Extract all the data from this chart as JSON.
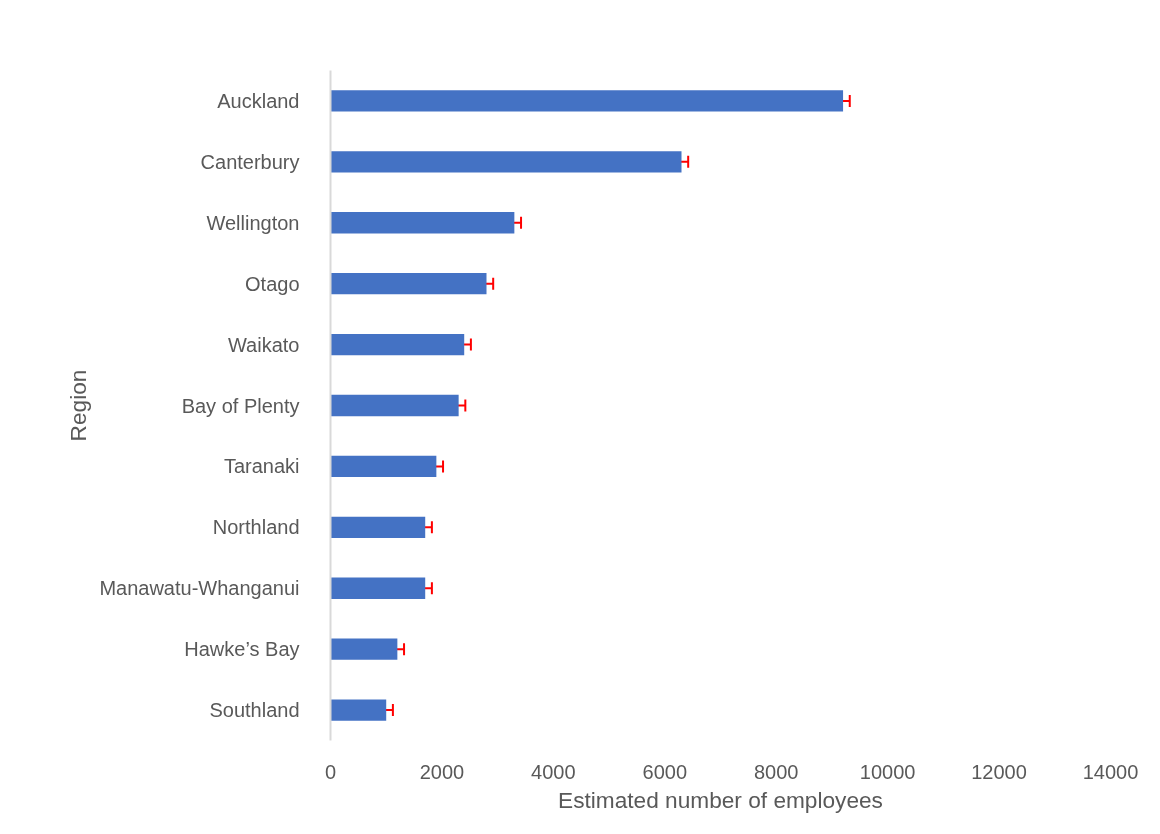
{
  "chart_data": {
    "type": "bar",
    "orientation": "horizontal",
    "xlabel": "Estimated number of employees",
    "ylabel": "Region",
    "categories": [
      "Auckland",
      "Canterbury",
      "Wellington",
      "Otago",
      "Waikato",
      "Bay of Plenty",
      "Taranaki",
      "Northland",
      "Manawatu-Whanganui",
      "Hawke’s Bay",
      "Southland"
    ],
    "values": [
      9200,
      6300,
      3300,
      2800,
      2400,
      2300,
      1900,
      1700,
      1700,
      1200,
      1000
    ],
    "errors": [
      120,
      120,
      120,
      120,
      120,
      120,
      120,
      120,
      120,
      120,
      120
    ],
    "color": "#4472c4",
    "xlim": [
      0,
      14000
    ],
    "xticks": [
      0,
      2000,
      4000,
      6000,
      8000,
      10000,
      12000,
      14000
    ],
    "grid": false
  }
}
